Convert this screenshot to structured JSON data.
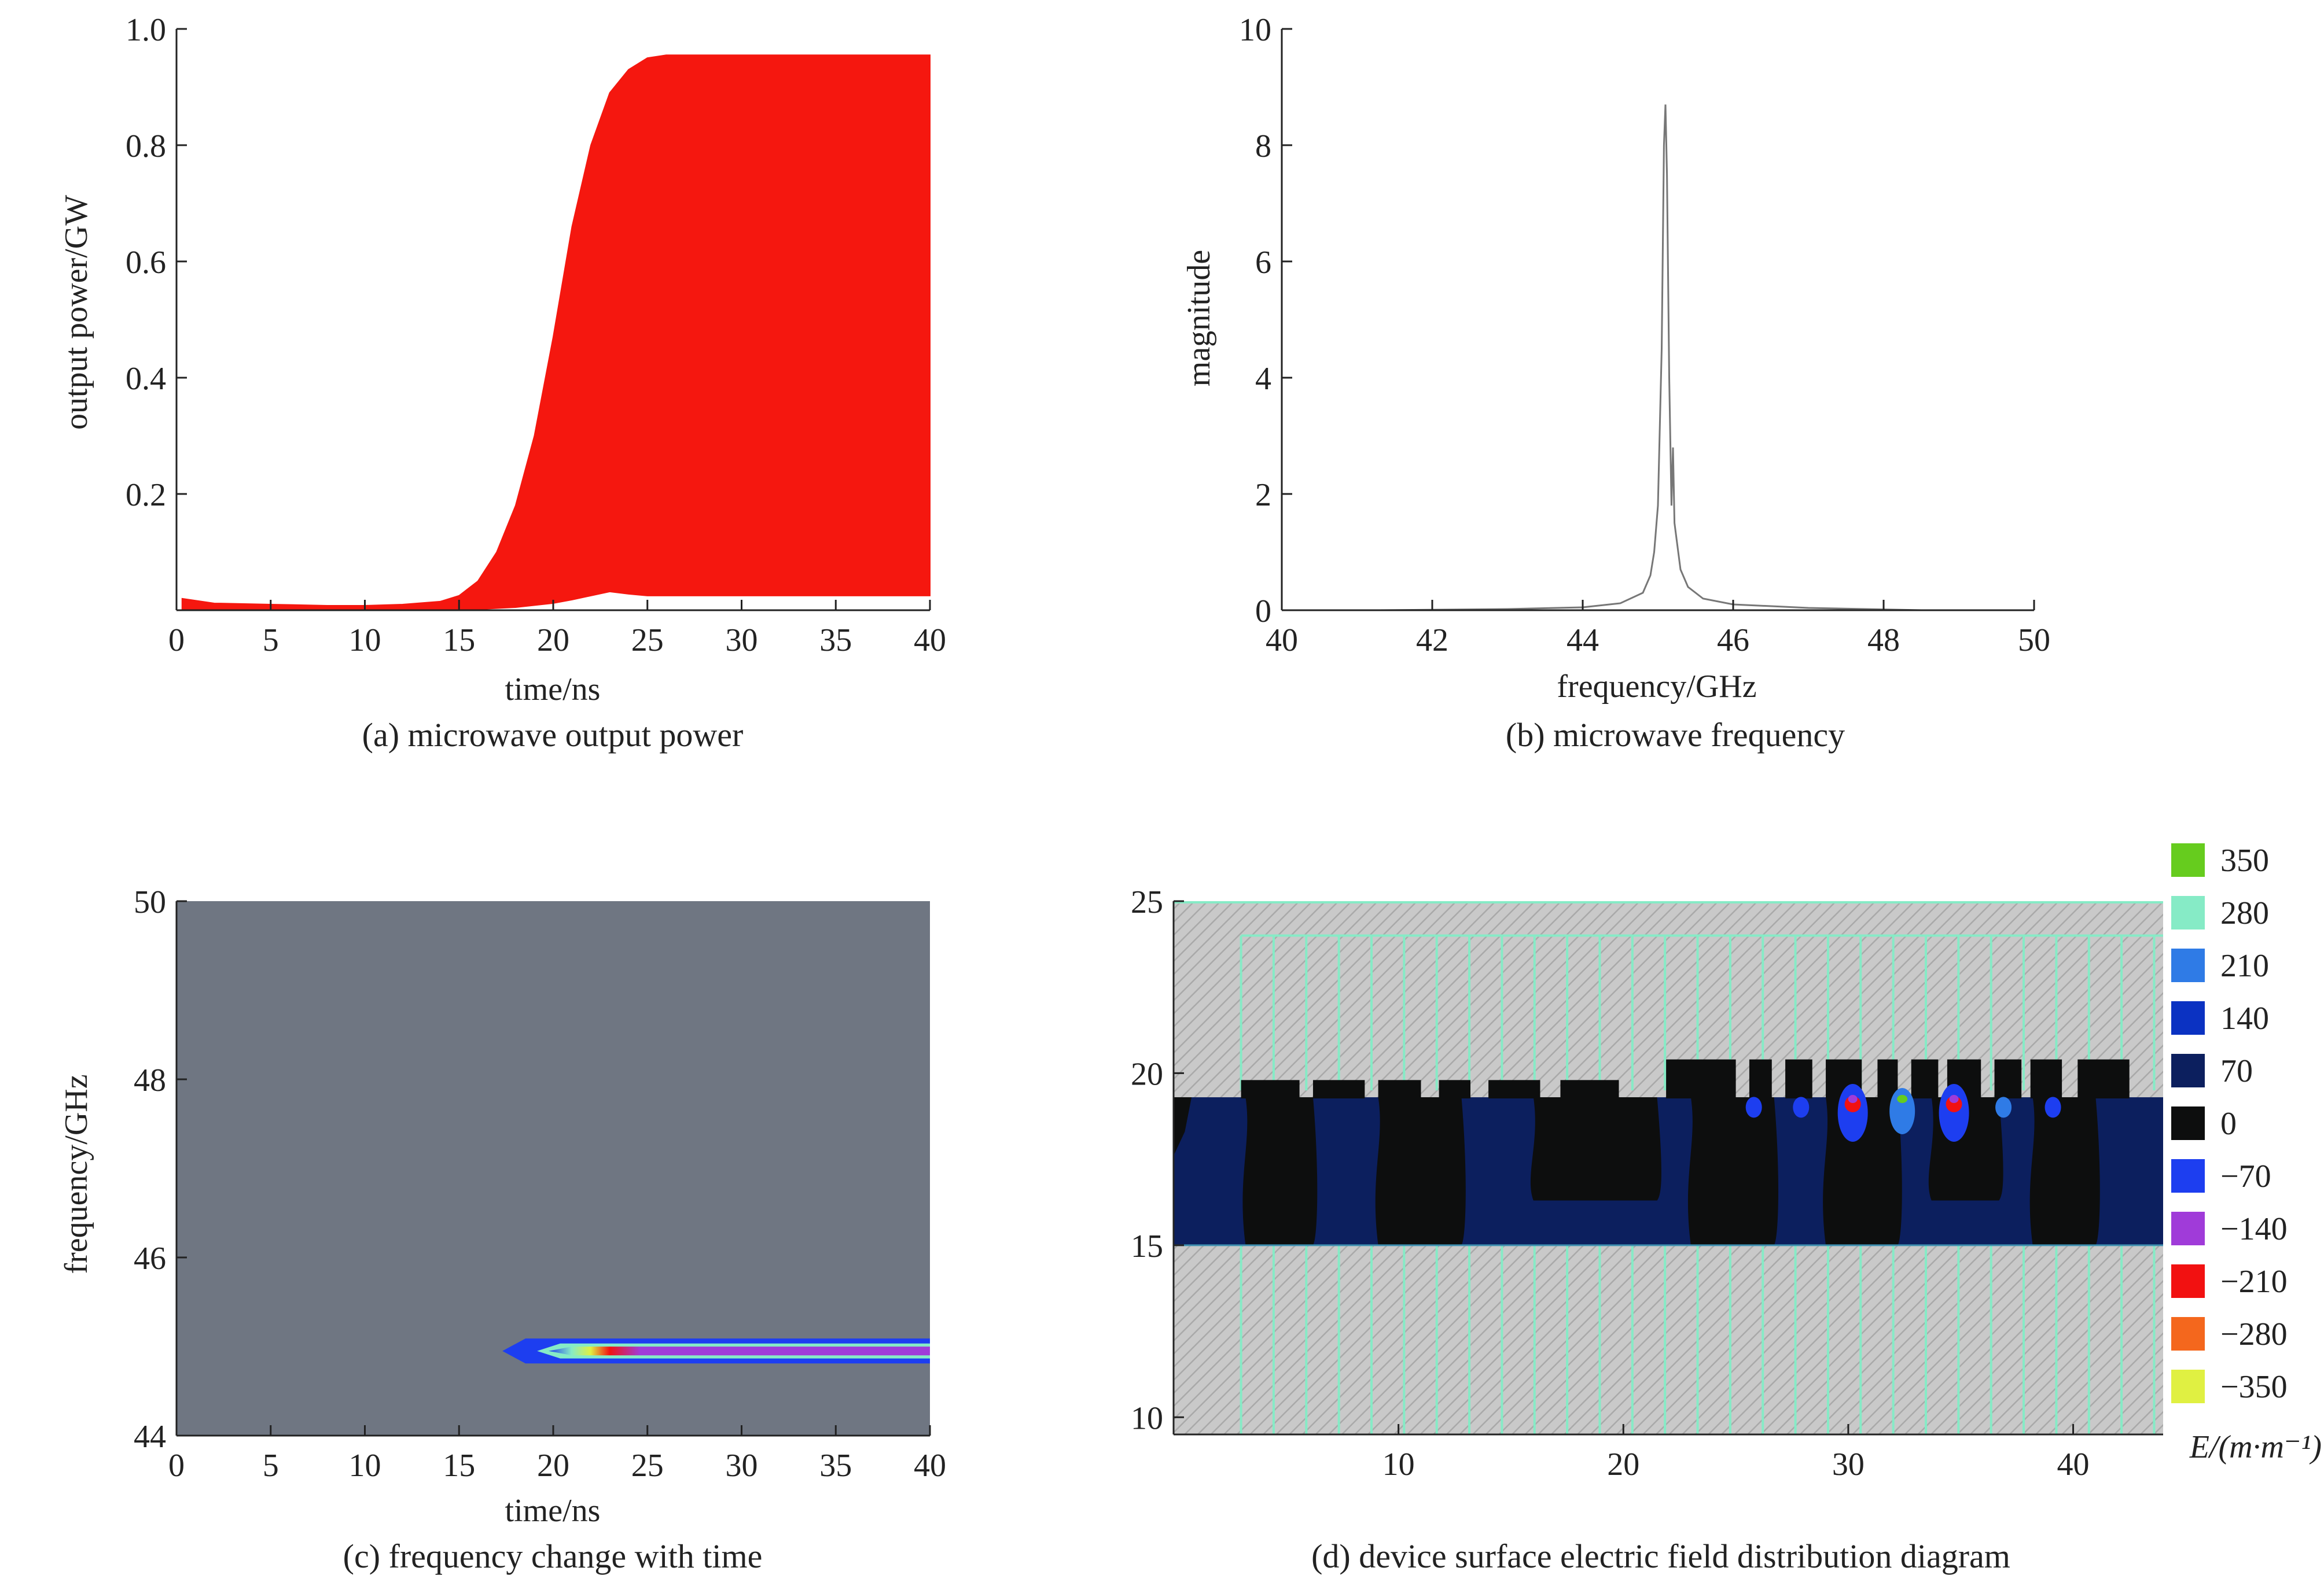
{
  "chart_data": [
    {
      "id": "a",
      "type": "area",
      "caption": "(a) microwave output power",
      "xlabel": "time/ns",
      "ylabel": "output power/GW",
      "xlim": [
        0,
        40
      ],
      "ylim": [
        0,
        1.0
      ],
      "xticks": [
        0,
        5,
        10,
        15,
        20,
        25,
        30,
        35,
        40
      ],
      "yticks": [
        0.2,
        0.4,
        0.6,
        0.8,
        1.0
      ],
      "ytick_labels": [
        "0.2",
        "0.4",
        "0.6",
        "0.8",
        "1.0"
      ],
      "fill_color": "#f5170f",
      "upper_envelope": {
        "x": [
          0.3,
          2,
          5,
          8,
          10,
          12,
          14,
          15,
          16,
          17,
          18,
          19,
          20,
          21,
          22,
          23,
          24,
          25,
          26,
          28,
          30,
          35,
          40
        ],
        "y": [
          0.02,
          0.012,
          0.01,
          0.008,
          0.008,
          0.01,
          0.015,
          0.025,
          0.05,
          0.1,
          0.18,
          0.3,
          0.47,
          0.66,
          0.8,
          0.89,
          0.93,
          0.95,
          0.955,
          0.955,
          0.955,
          0.955,
          0.955
        ]
      },
      "lower_envelope": {
        "x": [
          0.3,
          2,
          5,
          10,
          15,
          18,
          20,
          21,
          22,
          23,
          24,
          25,
          30,
          35,
          40
        ],
        "y": [
          0.0,
          0.0,
          0.0,
          0.0,
          0.0,
          0.005,
          0.012,
          0.018,
          0.025,
          0.032,
          0.028,
          0.025,
          0.025,
          0.025,
          0.025
        ]
      }
    },
    {
      "id": "b",
      "type": "line",
      "caption": "(b) microwave frequency",
      "xlabel": "frequency/GHz",
      "ylabel": "magnitude",
      "xlim": [
        40,
        50
      ],
      "ylim": [
        0,
        10
      ],
      "xticks": [
        40,
        42,
        44,
        46,
        48,
        50
      ],
      "yticks": [
        0,
        2,
        4,
        6,
        8,
        10
      ],
      "line_color": "#777777",
      "series": [
        {
          "x": [
            41.3,
            43.0,
            44.0,
            44.5,
            44.8,
            44.9,
            44.95,
            45.0,
            45.05,
            45.08,
            45.1,
            45.12,
            45.15,
            45.18,
            45.2,
            45.22,
            45.25,
            45.3,
            45.4,
            45.6,
            46.0,
            47.0,
            48.5
          ],
          "y": [
            0.0,
            0.02,
            0.05,
            0.12,
            0.3,
            0.6,
            1.0,
            1.8,
            4.5,
            8.0,
            8.7,
            7.5,
            4.0,
            1.8,
            2.8,
            1.5,
            1.2,
            0.7,
            0.4,
            0.2,
            0.1,
            0.04,
            0.0
          ]
        }
      ]
    },
    {
      "id": "c",
      "type": "heatmap",
      "caption": "(c) frequency change with time",
      "xlabel": "time/ns",
      "ylabel": "frequency/GHz",
      "xlim": [
        0,
        40
      ],
      "ylim": [
        44,
        50
      ],
      "xticks": [
        0,
        5,
        10,
        15,
        20,
        25,
        30,
        35,
        40
      ],
      "yticks": [
        44,
        46,
        48,
        50
      ],
      "background_color": "#6f7682",
      "band": {
        "start_time": 17.3,
        "end_time": 40,
        "center_frequency": 44.95,
        "bandwidth": 0.28
      }
    },
    {
      "id": "d",
      "type": "heatmap",
      "caption": "(d) device surface electric field distribution diagram",
      "xlim": [
        0,
        44
      ],
      "ylim": [
        9.5,
        25
      ],
      "xticks": [
        10,
        20,
        30,
        40
      ],
      "yticks": [
        10,
        15,
        20,
        25
      ],
      "colorbar_title": "E/(m·m⁻¹)",
      "colorbar": [
        {
          "label": "350",
          "color": "#66cc1e"
        },
        {
          "label": "280",
          "color": "#86ebc6"
        },
        {
          "label": "210",
          "color": "#2f7be6"
        },
        {
          "label": "140",
          "color": "#0b32c2"
        },
        {
          "label": "70",
          "color": "#0c1f5e"
        },
        {
          "label": "0",
          "color": "#0d0e0e"
        },
        {
          "label": "−70",
          "color": "#1d3ef0"
        },
        {
          "label": "−140",
          "color": "#a03bd9"
        },
        {
          "label": "−210",
          "color": "#f21111"
        },
        {
          "label": "−280",
          "color": "#f4671d"
        },
        {
          "label": "−350",
          "color": "#e0f042"
        }
      ],
      "cavity": {
        "bottom": 15,
        "top": 19.3
      },
      "hot_spots_x": [
        25.8,
        27.9,
        30.2,
        32.4,
        34.7,
        36.9,
        39.1
      ]
    }
  ]
}
